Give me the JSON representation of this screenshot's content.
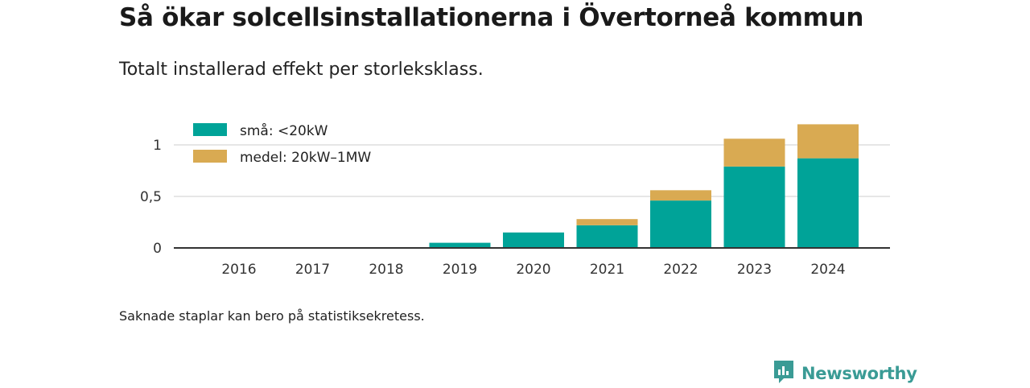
{
  "title": "Så ökar solcellsinstallationerna i Övertorneå kommun",
  "subtitle": "Totalt installerad effekt per storleksklass.",
  "footnote": "Saknade staplar kan bero på statistiksekretess.",
  "logo": {
    "text": "Newsworthy",
    "icon": "newsworthy-logo-icon",
    "color": "#3a9b95"
  },
  "chart_data": {
    "type": "bar",
    "stacked": true,
    "categories": [
      "2016",
      "2017",
      "2018",
      "2019",
      "2020",
      "2021",
      "2022",
      "2023",
      "2024"
    ],
    "series": [
      {
        "name": "små: <20kW",
        "color": "#00a398",
        "values": [
          0,
          0,
          0,
          0.05,
          0.15,
          0.22,
          0.46,
          0.79,
          0.87
        ]
      },
      {
        "name": "medel: 20kW–1MW",
        "color": "#d9aa52",
        "values": [
          0,
          0,
          0,
          0,
          0,
          0.06,
          0.1,
          0.27,
          0.33
        ]
      }
    ],
    "yticks": [
      "0",
      "0,5",
      "1"
    ],
    "ytick_values": [
      0,
      0.5,
      1
    ],
    "ylim": [
      0,
      1.2
    ],
    "grid": true,
    "legend_position": "top-left",
    "xlabel": "",
    "ylabel": ""
  }
}
